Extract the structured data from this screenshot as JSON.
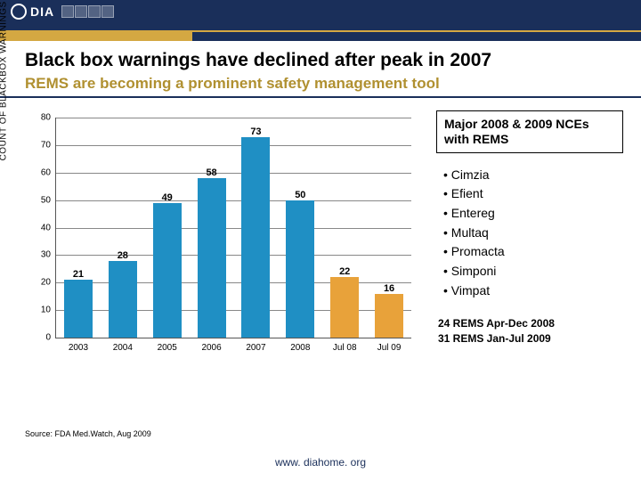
{
  "logo": {
    "text": "DIA"
  },
  "title": "Black box warnings have declined after peak in 2007",
  "subtitle": "REMS are becoming a prominent safety management tool",
  "subtitle_color": "#b09030",
  "chart": {
    "type": "bar",
    "y_axis_label": "COUNT OF BLACKBOX WARNINGS",
    "ylim": [
      0,
      80
    ],
    "ytick_step": 10,
    "categories": [
      "2003",
      "2004",
      "2005",
      "2006",
      "2007",
      "2008",
      "Jul 08",
      "Jul 09"
    ],
    "values": [
      21,
      28,
      49,
      58,
      73,
      50,
      22,
      16
    ],
    "bar_colors": [
      "#1f8fc4",
      "#1f8fc4",
      "#1f8fc4",
      "#1f8fc4",
      "#1f8fc4",
      "#1f8fc4",
      "#e8a23a",
      "#e8a23a"
    ],
    "label_fontsize": 11,
    "tick_fontsize": 10,
    "grid_color": "#888888",
    "background_color": "#ffffff"
  },
  "side": {
    "header": "Major 2008 & 2009 NCEs with REMS",
    "items": [
      "Cimzia",
      "Efient",
      "Entereg",
      "Multaq",
      "Promacta",
      "Simponi",
      "Vimpat"
    ],
    "counts": [
      "24 REMS Apr-Dec 2008",
      "31 REMS Jan-Jul 2009"
    ]
  },
  "source": "Source: FDA Med.Watch, Aug 2009",
  "footer": "www. diahome. org"
}
